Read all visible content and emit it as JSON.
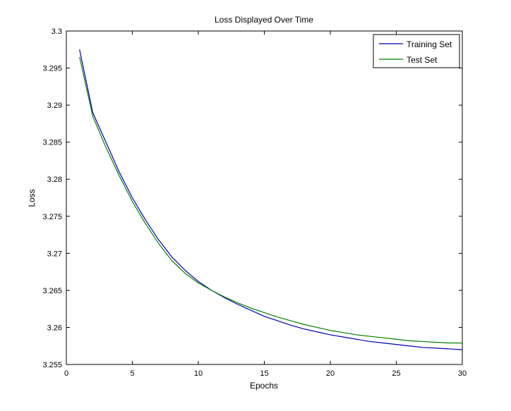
{
  "chart_data": {
    "type": "line",
    "title": "Loss Displayed Over Time",
    "xlabel": "Epochs",
    "ylabel": "Loss",
    "xlim": [
      0,
      30
    ],
    "ylim": [
      3.255,
      3.3
    ],
    "xticks": [
      0,
      5,
      10,
      15,
      20,
      25,
      30
    ],
    "xtick_labels": [
      "0",
      "5",
      "10",
      "15",
      "20",
      "25",
      "30"
    ],
    "yticks": [
      3.255,
      3.26,
      3.265,
      3.27,
      3.275,
      3.28,
      3.285,
      3.29,
      3.295,
      3.3
    ],
    "ytick_labels": [
      "3.255",
      "3.26",
      "3.265",
      "3.27",
      "3.275",
      "3.28",
      "3.285",
      "3.29",
      "3.295",
      "3.3"
    ],
    "grid": false,
    "legend": "top-right",
    "x": [
      1,
      2,
      3,
      4,
      5,
      6,
      7,
      8,
      9,
      10,
      11,
      12,
      13,
      14,
      15,
      16,
      17,
      18,
      19,
      20,
      21,
      22,
      23,
      24,
      25,
      26,
      27,
      28,
      29,
      30
    ],
    "series": [
      {
        "name": "Training Set",
        "color": "#0000b0",
        "values": [
          3.2975,
          3.289,
          3.285,
          3.281,
          3.2775,
          3.2745,
          3.2718,
          3.2695,
          3.2677,
          3.2662,
          3.265,
          3.264,
          3.2631,
          3.2623,
          3.2615,
          3.2609,
          3.2603,
          3.2598,
          3.2594,
          3.259,
          3.2587,
          3.2584,
          3.2581,
          3.2579,
          3.2577,
          3.2575,
          3.2573,
          3.2572,
          3.2571,
          3.257
        ]
      },
      {
        "name": "Test Set",
        "color": "#008000",
        "values": [
          3.2965,
          3.2885,
          3.2843,
          3.2805,
          3.277,
          3.274,
          3.2713,
          3.269,
          3.2673,
          3.266,
          3.265,
          3.2641,
          3.2633,
          3.2626,
          3.262,
          3.2614,
          3.2609,
          3.2604,
          3.26,
          3.2596,
          3.2593,
          3.259,
          3.2588,
          3.2586,
          3.2584,
          3.2582,
          3.2581,
          3.258,
          3.2579,
          3.2579
        ]
      }
    ]
  }
}
